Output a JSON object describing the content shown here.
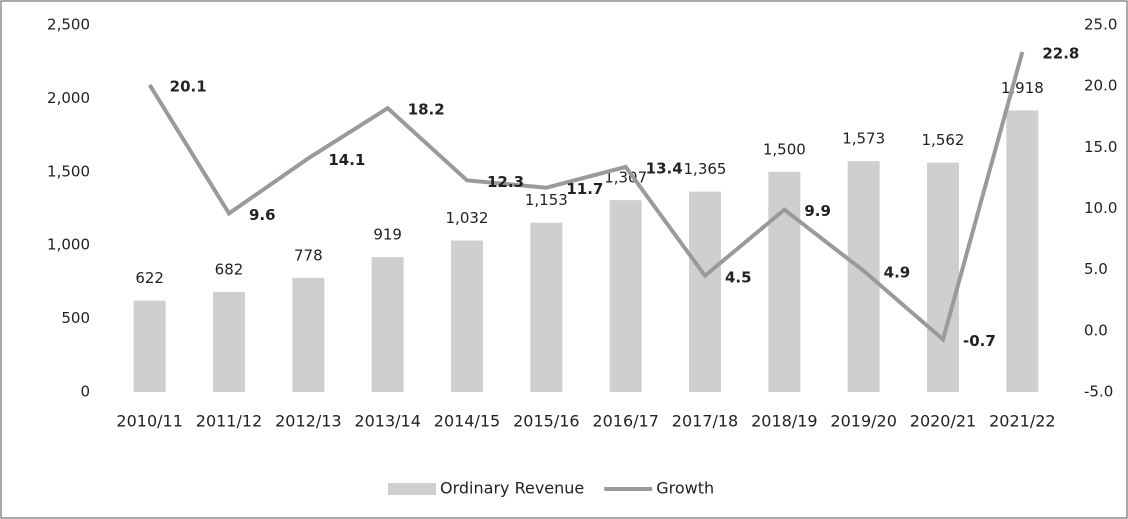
{
  "chart_data": {
    "type": "bar",
    "categories": [
      "2010/11",
      "2011/12",
      "2012/13",
      "2013/14",
      "2014/15",
      "2015/16",
      "2016/17",
      "2017/18",
      "2018/19",
      "2019/20",
      "2020/21",
      "2021/22"
    ],
    "series": [
      {
        "name": "Ordinary Revenue",
        "type": "bar",
        "color": "#cfcfcf",
        "values": [
          622,
          682,
          778,
          919,
          1032,
          1153,
          1307,
          1365,
          1500,
          1573,
          1562,
          1918
        ],
        "value_labels": [
          "622",
          "682",
          "778",
          "919",
          "1,032",
          "1,153",
          "1,307",
          "1,365",
          "1,500",
          "1,573",
          "1,562",
          "1,918"
        ]
      },
      {
        "name": "Growth",
        "type": "line",
        "axis": "y2",
        "color": "#9a9a9a",
        "values": [
          20.1,
          9.6,
          14.1,
          18.2,
          12.3,
          11.7,
          13.4,
          4.5,
          9.9,
          4.9,
          -0.7,
          22.8
        ]
      }
    ],
    "ylim": [
      0,
      2500
    ],
    "yticks": [
      0,
      500,
      {
        "value": 1000,
        "label": "1,000"
      },
      {
        "value": 1500,
        "label": "1,500"
      },
      {
        "value": 2000,
        "label": "2,000"
      },
      {
        "value": 2500,
        "label": "2,500"
      }
    ],
    "y2lim": [
      -5,
      25
    ],
    "y2ticks": [
      {
        "value": -5,
        "label": "-5.0"
      },
      {
        "value": 0,
        "label": "0.0"
      },
      {
        "value": 5,
        "label": "5.0"
      },
      {
        "value": 10,
        "label": "10.0"
      },
      {
        "value": 15,
        "label": "15.0"
      },
      {
        "value": 20,
        "label": "20.0"
      },
      {
        "value": 25,
        "label": "25.0"
      }
    ],
    "legend": "bottom"
  }
}
